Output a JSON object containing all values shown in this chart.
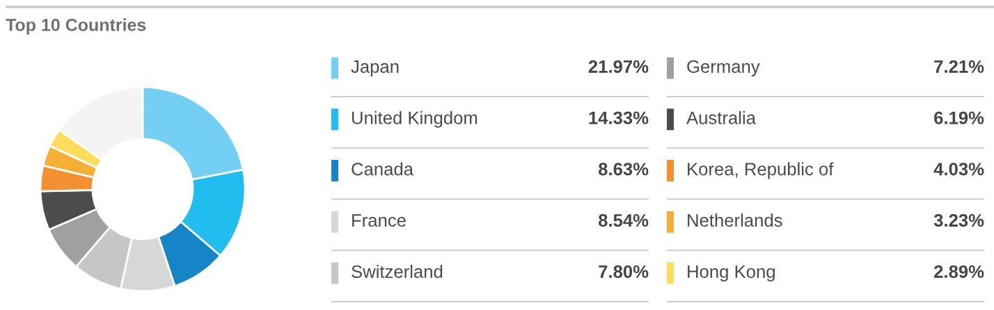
{
  "chart_data": {
    "type": "donut",
    "title": "Top 10 Countries",
    "categories": [
      "Japan",
      "United Kingdom",
      "Canada",
      "France",
      "Switzerland",
      "Germany",
      "Australia",
      "Korea, Republic of",
      "Netherlands",
      "Hong Kong",
      null
    ],
    "values": [
      21.97,
      14.33,
      8.63,
      8.54,
      7.8,
      7.21,
      6.19,
      4.03,
      3.23,
      2.89,
      15.18
    ],
    "colors": [
      "#73cff3",
      "#21bdee",
      "#1585c8",
      "#d7d7d7",
      "#c6c6c6",
      "#a0a0a0",
      "#4c4c4e",
      "#f39030",
      "#f7ae35",
      "#fddc5c",
      "#f4f4f4"
    ],
    "value_labels": [
      "21.97%",
      "14.33%",
      "8.63%",
      "8.54%",
      "7.80%",
      "7.21%",
      "6.19%",
      "4.03%",
      "3.23%",
      "2.89%",
      null
    ],
    "legend": "right"
  }
}
